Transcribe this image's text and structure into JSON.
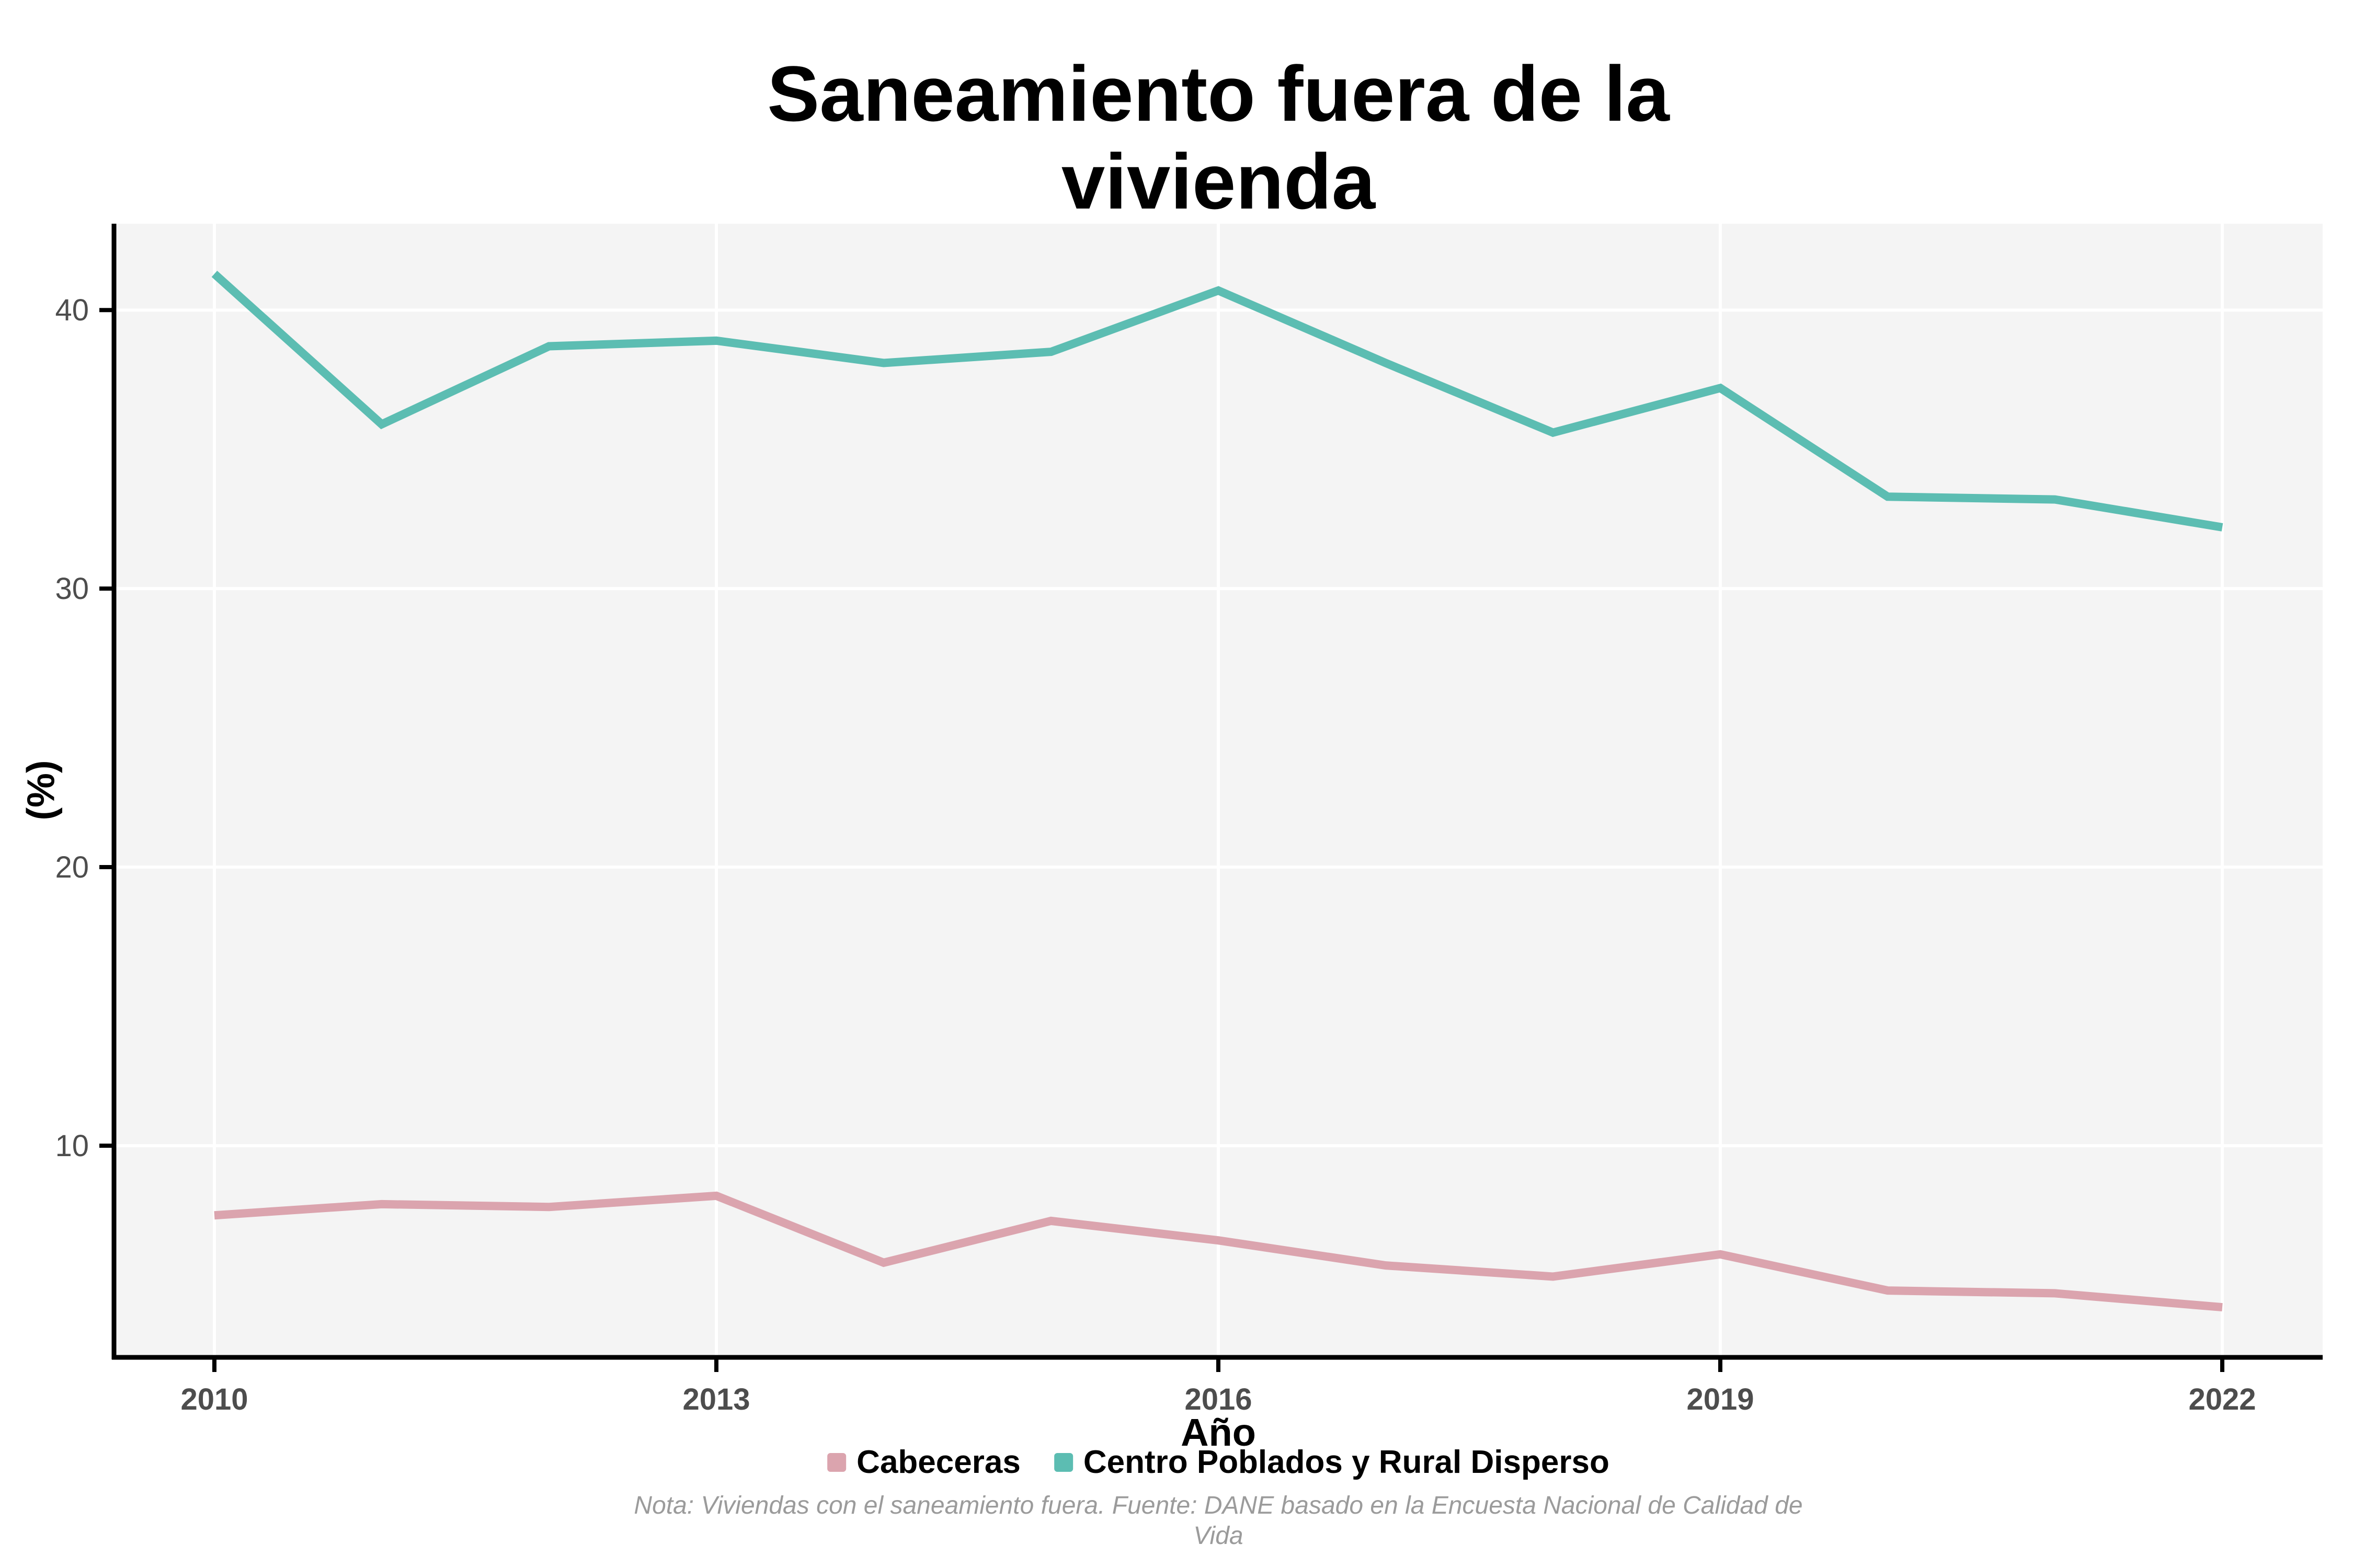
{
  "chart_data": {
    "type": "line",
    "title": "Saneamiento fuera de la vivienda",
    "xlabel": "Año",
    "ylabel": "(%)",
    "x": [
      2010,
      2011,
      2012,
      2013,
      2014,
      2015,
      2016,
      2017,
      2018,
      2019,
      2020,
      2021,
      2022
    ],
    "series": [
      {
        "name": "Cabeceras",
        "color": "#dba4ae",
        "values": [
          7.5,
          7.9,
          7.8,
          8.2,
          5.8,
          7.3,
          6.6,
          5.7,
          5.3,
          6.1,
          4.8,
          4.7,
          4.2
        ]
      },
      {
        "name": "Centro Poblados y Rural Disperso",
        "color": "#5cbdb2",
        "values": [
          41.3,
          35.9,
          38.7,
          38.9,
          38.1,
          38.5,
          40.7,
          38.1,
          35.6,
          37.2,
          33.3,
          33.2,
          32.2
        ]
      }
    ],
    "x_ticks": [
      2010,
      2013,
      2016,
      2019,
      2022
    ],
    "y_ticks": [
      10,
      20,
      30,
      40
    ],
    "xlim": [
      2009.4,
      2022.6
    ],
    "ylim": [
      2.4,
      43.1
    ],
    "grid": true,
    "legend_position": "bottom"
  },
  "caption": {
    "line1": "Nota: Viviendas con el saneamiento fuera. Fuente: DANE basado en la Encuesta Nacional de Calidad de",
    "line2": "Vida"
  },
  "style": {
    "panel_background": "#f4f4f4",
    "gridline_color": "#ffffff",
    "axis_color": "#000000",
    "tick_label_color": "#4d4d4d",
    "caption_color": "#9b9b9b"
  }
}
